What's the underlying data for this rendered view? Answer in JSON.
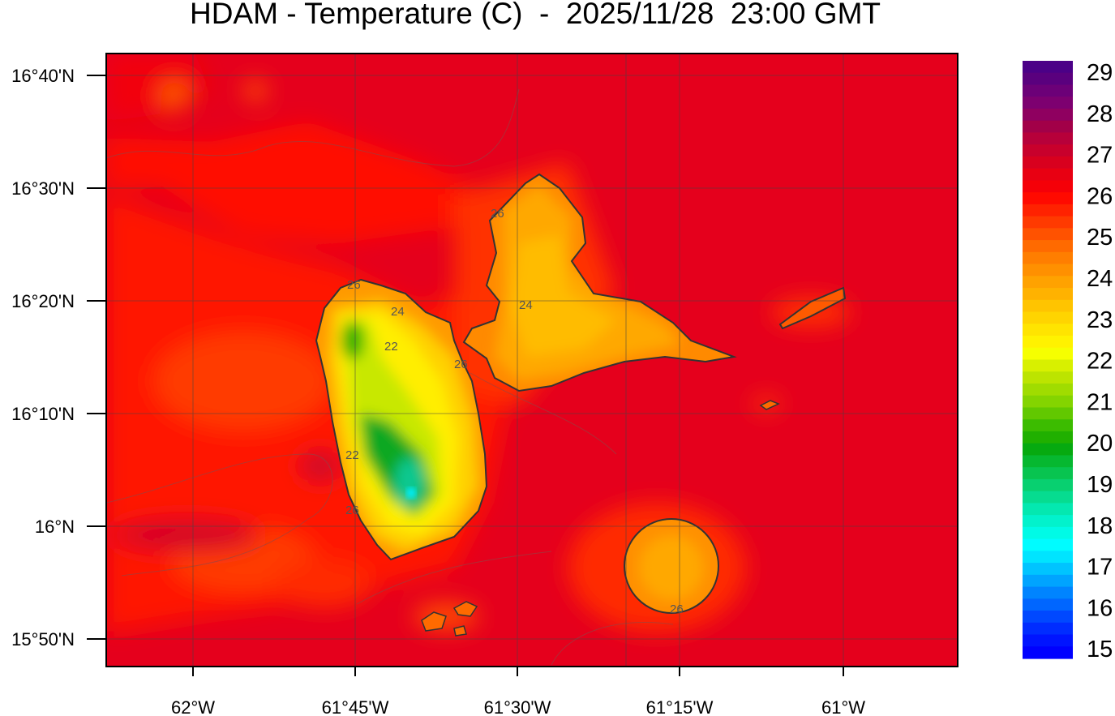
{
  "title": "HDAM - Temperature (C)  -  2025/11/28  23:00 GMT",
  "map": {
    "variable": "Temperature (C)",
    "x_ticks": [
      "62°W",
      "61°45'W",
      "61°30'W",
      "61°15'W",
      "61°W"
    ],
    "y_ticks": [
      "16°40'N",
      "16°30'N",
      "16°20'N",
      "16°10'N",
      "16°N",
      "15°50'N"
    ],
    "contour_labels": [
      "26",
      "24",
      "22",
      "26",
      "24",
      "26",
      "22",
      "26",
      "26"
    ],
    "colors": {
      "sea_warm": "#e5001c",
      "sea_west": "#ff1a00",
      "land_orange": "#ffa000",
      "land_yellow": "#ffe000",
      "land_green": "#10b020",
      "land_cyan": "#00e8e0",
      "coastline": "#333333"
    }
  },
  "colorbar": {
    "labels": [
      "29",
      "28",
      "27",
      "26",
      "25",
      "24",
      "23",
      "22",
      "21",
      "20",
      "19",
      "18",
      "17",
      "16",
      "15"
    ],
    "colors": [
      "#4b0087",
      "#5a007e",
      "#6c0078",
      "#7d0070",
      "#8f0060",
      "#a20048",
      "#b7003a",
      "#c8002c",
      "#d8001e",
      "#e80012",
      "#f50008",
      "#ff0a00",
      "#ff2200",
      "#ff3a00",
      "#ff5200",
      "#ff6a00",
      "#ff7e00",
      "#ff9000",
      "#ffa200",
      "#ffb200",
      "#ffc400",
      "#ffd400",
      "#ffe400",
      "#fff200",
      "#f6ff00",
      "#d8f000",
      "#bce400",
      "#a0dc00",
      "#84d400",
      "#62c800",
      "#3cbc00",
      "#20b000",
      "#06aa10",
      "#06b830",
      "#08c450",
      "#08d070",
      "#06dc90",
      "#04e8b0",
      "#02f2cc",
      "#00fae6",
      "#00fcff",
      "#00e4ff",
      "#00c4ff",
      "#00a4ff",
      "#0084ff",
      "#0066ff",
      "#0048ff",
      "#002cff",
      "#0014ff",
      "#0000ff"
    ]
  }
}
